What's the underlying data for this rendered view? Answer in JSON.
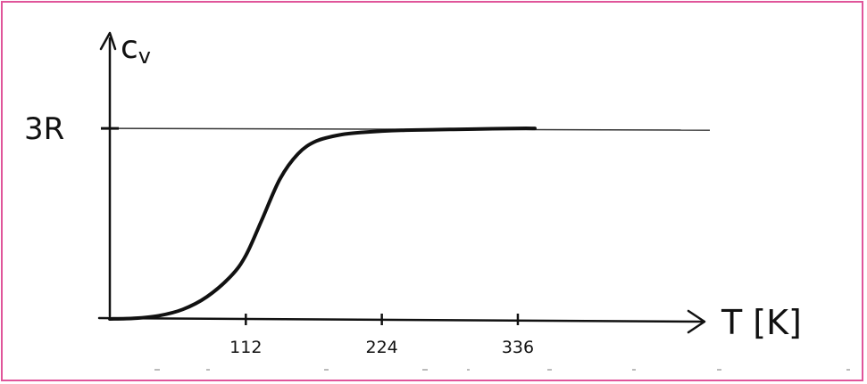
{
  "colors": {
    "border": "#e0559a",
    "ink": "#111111",
    "reference_line": "#333333"
  },
  "chart_data": {
    "type": "line",
    "title": "",
    "ylabel": "c",
    "ylabel_subscript": "v",
    "xlabel": "T [K]",
    "x_ticks": [
      112,
      224,
      336
    ],
    "x_tick_labels": [
      "112",
      "224",
      "336"
    ],
    "y_tick_labels": [
      "3R"
    ],
    "xlim": [
      0,
      460
    ],
    "ylim": [
      0,
      3.6
    ],
    "reference_lines": [
      {
        "label": "3R",
        "y": 3.0
      }
    ],
    "series": [
      {
        "x": [
          0,
          20,
          40,
          60,
          80,
          100,
          112,
          125,
          140,
          155,
          170,
          190,
          210,
          240,
          270,
          300,
          336,
          350
        ],
        "y": [
          0.0,
          0.01,
          0.05,
          0.15,
          0.35,
          0.68,
          1.0,
          1.55,
          2.2,
          2.6,
          2.8,
          2.9,
          2.94,
          2.97,
          2.98,
          2.99,
          3.0,
          3.0
        ]
      }
    ],
    "grid": false
  }
}
